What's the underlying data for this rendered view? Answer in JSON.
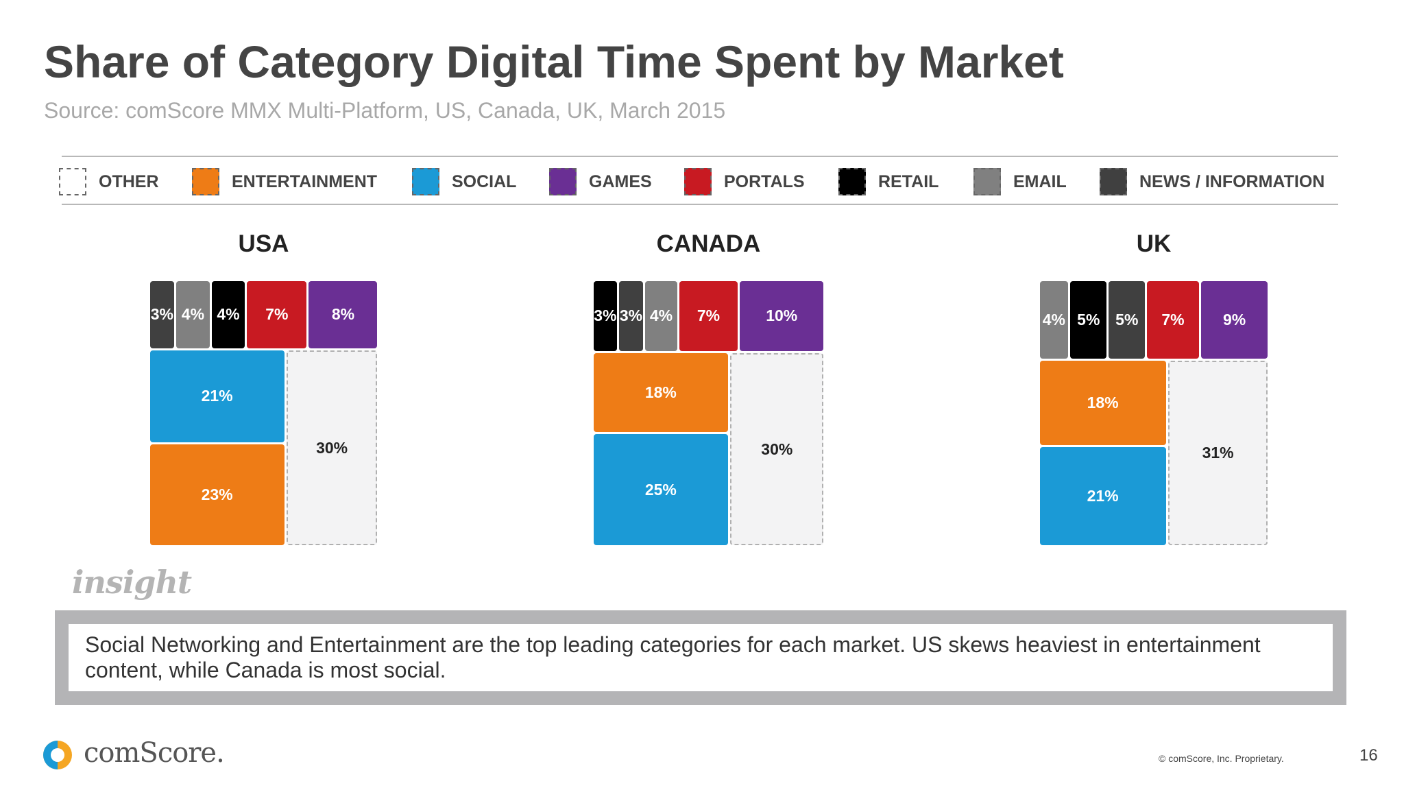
{
  "slide": {
    "title": "Share of Category Digital Time Spent by Market",
    "subtitle": "Source: comScore MMX Multi-Platform, US, Canada, UK, March 2015",
    "insight_label": "insight",
    "callout": "Social Networking and Entertainment are the top leading categories for each market. US skews heaviest in entertainment content, while Canada is most social.",
    "logo_text": "comScore.",
    "copyright": "© comScore, Inc. Proprietary.",
    "page_number": "16"
  },
  "legend": [
    {
      "label": "OTHER",
      "color": "#ffffff"
    },
    {
      "label": "ENTERTAINMENT",
      "color": "#ee7c16"
    },
    {
      "label": "SOCIAL",
      "color": "#1b9ad6"
    },
    {
      "label": "GAMES",
      "color": "#6a2f94"
    },
    {
      "label": "PORTALS",
      "color": "#c81a22"
    },
    {
      "label": "RETAIL",
      "color": "#000000"
    },
    {
      "label": "EMAIL",
      "color": "#808080"
    },
    {
      "label": "NEWS / INFORMATION",
      "color": "#404040"
    }
  ],
  "chart_data": [
    {
      "type": "treemap",
      "title": "USA",
      "cells": [
        {
          "category": "NEWS / INFORMATION",
          "value": 3,
          "label": "3%"
        },
        {
          "category": "EMAIL",
          "value": 4,
          "label": "4%"
        },
        {
          "category": "RETAIL",
          "value": 4,
          "label": "4%"
        },
        {
          "category": "PORTALS",
          "value": 7,
          "label": "7%"
        },
        {
          "category": "GAMES",
          "value": 8,
          "label": "8%"
        },
        {
          "category": "SOCIAL",
          "value": 21,
          "label": "21%"
        },
        {
          "category": "ENTERTAINMENT",
          "value": 23,
          "label": "23%"
        },
        {
          "category": "OTHER",
          "value": 30,
          "label": "30%"
        }
      ]
    },
    {
      "type": "treemap",
      "title": "CANADA",
      "cells": [
        {
          "category": "RETAIL",
          "value": 3,
          "label": "3%"
        },
        {
          "category": "NEWS / INFORMATION",
          "value": 3,
          "label": "3%"
        },
        {
          "category": "EMAIL",
          "value": 4,
          "label": "4%"
        },
        {
          "category": "PORTALS",
          "value": 7,
          "label": "7%"
        },
        {
          "category": "GAMES",
          "value": 10,
          "label": "10%"
        },
        {
          "category": "ENTERTAINMENT",
          "value": 18,
          "label": "18%"
        },
        {
          "category": "SOCIAL",
          "value": 25,
          "label": "25%"
        },
        {
          "category": "OTHER",
          "value": 30,
          "label": "30%"
        }
      ]
    },
    {
      "type": "treemap",
      "title": "UK",
      "cells": [
        {
          "category": "EMAIL",
          "value": 4,
          "label": "4%"
        },
        {
          "category": "RETAIL",
          "value": 5,
          "label": "5%"
        },
        {
          "category": "NEWS / INFORMATION",
          "value": 5,
          "label": "5%"
        },
        {
          "category": "PORTALS",
          "value": 7,
          "label": "7%"
        },
        {
          "category": "GAMES",
          "value": 9,
          "label": "9%"
        },
        {
          "category": "ENTERTAINMENT",
          "value": 18,
          "label": "18%"
        },
        {
          "category": "SOCIAL",
          "value": 21,
          "label": "21%"
        },
        {
          "category": "OTHER",
          "value": 31,
          "label": "31%"
        }
      ]
    }
  ]
}
